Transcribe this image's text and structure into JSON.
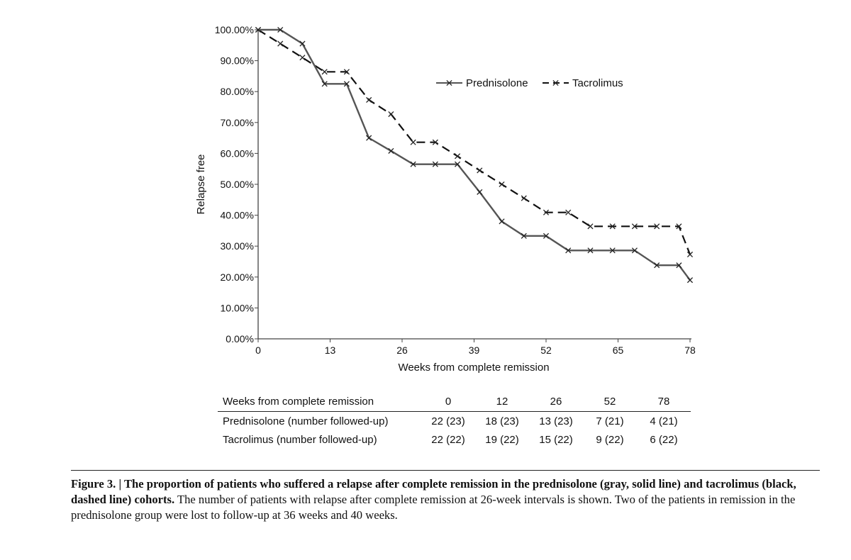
{
  "chart_data": {
    "type": "line",
    "xlabel": "Weeks from complete remission",
    "ylabel": "Relapse free",
    "xlim": [
      0,
      78
    ],
    "ylim": [
      0,
      100
    ],
    "x_ticks": [
      "0",
      "13",
      "26",
      "39",
      "52",
      "65",
      "78"
    ],
    "y_ticks": [
      "0.00%",
      "10.00%",
      "20.00%",
      "30.00%",
      "40.00%",
      "50.00%",
      "60.00%",
      "70.00%",
      "80.00%",
      "90.00%",
      "100.00%"
    ],
    "legend_position": "top-right",
    "grid": false,
    "series": [
      {
        "name": "Prednisolone",
        "style": "solid",
        "color": "#555555",
        "marker": "x",
        "x": [
          0,
          4,
          8,
          12,
          16,
          20,
          24,
          28,
          32,
          36,
          40,
          44,
          48,
          52,
          56,
          60,
          64,
          68,
          72,
          76,
          78
        ],
        "y": [
          100,
          100,
          95.5,
          82.5,
          82.5,
          65,
          60.8,
          56.5,
          56.5,
          56.5,
          47.5,
          38,
          33.3,
          33.3,
          28.6,
          28.6,
          28.6,
          28.6,
          23.8,
          23.8,
          19
        ]
      },
      {
        "name": "Tacrolimus",
        "style": "dashed",
        "color": "#111111",
        "marker": "x",
        "x": [
          0,
          4,
          8,
          12,
          16,
          20,
          24,
          28,
          32,
          36,
          40,
          44,
          48,
          52,
          56,
          60,
          64,
          68,
          72,
          76,
          78
        ],
        "y": [
          100,
          95.5,
          91,
          86.4,
          86.4,
          77.3,
          72.7,
          63.6,
          63.6,
          59.1,
          54.5,
          50,
          45.5,
          40.9,
          40.9,
          36.4,
          36.4,
          36.4,
          36.4,
          36.4,
          27.3
        ]
      }
    ]
  },
  "table": {
    "header": [
      "Weeks from complete remission",
      "0",
      "12",
      "26",
      "52",
      "78"
    ],
    "rows": [
      [
        "Prednisolone (number followed-up)",
        "22 (23)",
        "18 (23)",
        "13 (23)",
        "7 (21)",
        "4 (21)"
      ],
      [
        "Tacrolimus (number followed-up)",
        "22 (22)",
        "19 (22)",
        "15 (22)",
        "9 (22)",
        "6 (22)"
      ]
    ]
  },
  "caption": {
    "bold": "Figure 3. | The proportion of patients who suffered a relapse after complete remission in the prednisolone (gray, solid line) and tacrolimus (black, dashed line) cohorts.",
    "text": " The number of patients with relapse after complete remission at 26-week intervals is shown. Two of the patients in remission in the prednisolone group were lost to follow-up at 36 weeks and 40 weeks."
  }
}
